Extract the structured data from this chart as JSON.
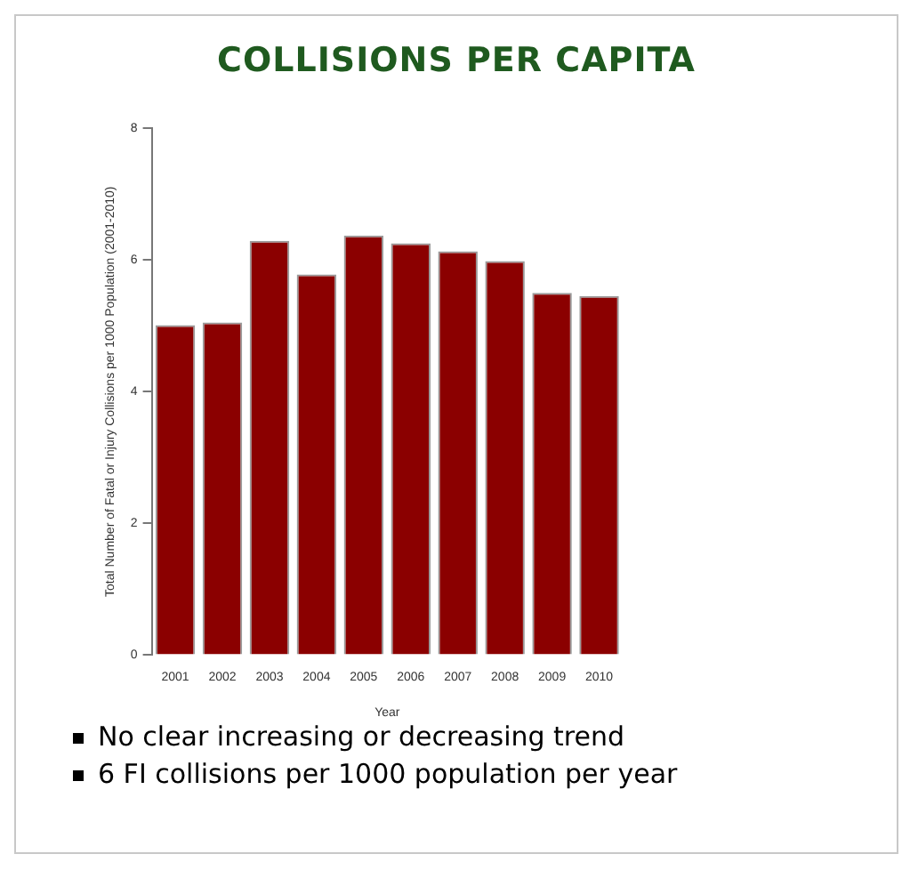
{
  "chart_data": {
    "type": "bar",
    "title": "COLLISIONS PER CAPITA",
    "xlabel": "Year",
    "ylabel": "Total Number of Fatal or Injury Collisions per 1000 Population (2001-2010)",
    "categories": [
      "2001",
      "2002",
      "2003",
      "2004",
      "2005",
      "2006",
      "2007",
      "2008",
      "2009",
      "2010"
    ],
    "values": [
      5.01,
      5.05,
      6.29,
      5.78,
      6.37,
      6.25,
      6.13,
      5.98,
      5.5,
      5.45
    ],
    "color": "#8b0000",
    "ylim": [
      0,
      8
    ],
    "yticks": [
      0,
      2,
      4,
      6,
      8
    ],
    "grid": false,
    "legend": false,
    "annotations": [
      "No clear increasing or decreasing trend",
      "6 FI collisions per 1000 population per year"
    ]
  }
}
